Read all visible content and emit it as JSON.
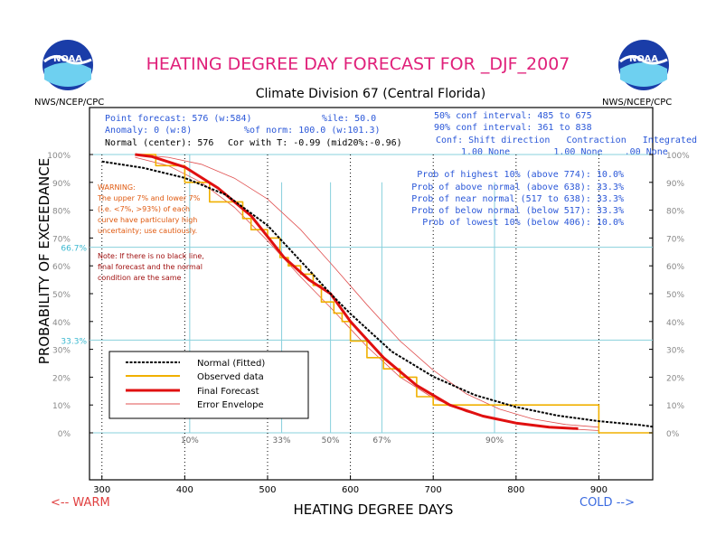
{
  "header": {
    "title": "HEATING DEGREE DAY FORECAST FOR _DJF_2007",
    "subtitle": "Climate Division 67 (Central Florida)",
    "agency_left": "NWS/NCEP/CPC",
    "agency_right": "NWS/NCEP/CPC",
    "logo_text": "NOAA"
  },
  "stats": {
    "point_forecast": "Point forecast: 576 (w:584)",
    "anomaly": "Anomaly: 0 (w:8)",
    "normal_center": "Normal (center): 576",
    "cor_with_t": "Cor with T: -0.99 (mid20%:-0.96)",
    "percentile": "%ile: 50.0",
    "pct_of_norm": "%of norm: 100.0 (w:101.3)",
    "conf50": "50% conf interval: 485 to 675",
    "conf90": "90% conf interval: 361 to 838",
    "conf_header": "Conf: Shift direction   Contraction   Integrated",
    "conf_values": "1.00 None        1.00 None    .00 None"
  },
  "probs": [
    "Prob of highest 10% (above 774): 10.0%",
    "Prob of above normal (above 638): 33.3%",
    "Prob of near normal (517 to 638): 33.3%",
    "Prob of below normal (below 517): 33.3%",
    "Prob of lowest 10% (below 406): 10.0%"
  ],
  "warning": {
    "title": "WARNING:",
    "lines": [
      "The upper 7% and lower 7%",
      "(i.e. <7%, >93%) of each",
      "curve have particulary high",
      "uncertainty; use cautiously."
    ]
  },
  "note": {
    "lines": [
      "Note: If there is no black line,",
      "final forecast and  the normal",
      "condition are the same"
    ]
  },
  "axes": {
    "xlabel": "HEATING DEGREE DAYS",
    "ylabel": "PROBABILITY OF EXCEEDANCE",
    "warm": "<-- WARM",
    "cold": "COLD -->"
  },
  "colors": {
    "title": "#e0207a",
    "blue_text": "#2a57d8",
    "normal": "#000000",
    "observed": "#f0b000",
    "forecast": "#e01010",
    "envelope": "#e05050",
    "guide": "#88d0dc",
    "warning": "#e05a10",
    "note": "#a01010",
    "warm": "#e04040",
    "cold": "#3a6ae0"
  },
  "chart_data": {
    "type": "line",
    "xlabel": "HEATING DEGREE DAYS",
    "ylabel": "PROBABILITY OF EXCEEDANCE",
    "xlim": [
      285,
      965
    ],
    "ylim": [
      0,
      100
    ],
    "x_ticks": [
      300,
      400,
      500,
      600,
      700,
      800,
      900
    ],
    "y_ticks": [
      "0%",
      "10%",
      "20%",
      "30%",
      "40%",
      "50%",
      "60%",
      "70%",
      "80%",
      "90%",
      "100%"
    ],
    "ref_lines": [
      {
        "label": "66.7%",
        "y": 66.7
      },
      {
        "label": "33.3%",
        "y": 33.3
      }
    ],
    "percentile_markers": [
      {
        "label": "10%",
        "x": 406
      },
      {
        "label": "33%",
        "x": 517
      },
      {
        "label": "50%",
        "x": 576
      },
      {
        "label": "67%",
        "x": 638
      },
      {
        "label": "90%",
        "x": 774
      }
    ],
    "legend": [
      "Normal (Fitted)",
      "Observed data",
      "Final Forecast",
      "Error Envelope"
    ],
    "series": [
      {
        "name": "Normal (Fitted)",
        "x": [
          300,
          350,
          400,
          450,
          500,
          550,
          576,
          600,
          650,
          700,
          750,
          800,
          850,
          900,
          950,
          965
        ],
        "y": [
          97.5,
          95.2,
          91.6,
          85.5,
          74.5,
          58.5,
          50,
          42.8,
          29.2,
          20.2,
          13.6,
          9.3,
          6.2,
          4.2,
          2.8,
          2.2
        ]
      },
      {
        "name": "Observed data",
        "x": [
          340,
          365,
          365,
          400,
          400,
          430,
          430,
          470,
          470,
          480,
          480,
          500,
          500,
          515,
          515,
          525,
          525,
          540,
          540,
          555,
          555,
          565,
          565,
          580,
          580,
          590,
          590,
          600,
          600,
          620,
          620,
          640,
          640,
          660,
          660,
          680,
          680,
          700,
          700,
          900,
          900,
          965
        ],
        "y": [
          100,
          100,
          96,
          96,
          90,
          90,
          83,
          83,
          77,
          77,
          73,
          73,
          70,
          70,
          63,
          63,
          60,
          60,
          57,
          57,
          53,
          53,
          47,
          47,
          43,
          43,
          40,
          40,
          33,
          33,
          27,
          27,
          23,
          23,
          20,
          20,
          13,
          13,
          10,
          10,
          0,
          0
        ]
      },
      {
        "name": "Final Forecast",
        "x": [
          340,
          360,
          400,
          440,
          480,
          520,
          550,
          576,
          600,
          640,
          680,
          720,
          760,
          800,
          840,
          875
        ],
        "y": [
          100,
          99.3,
          95.5,
          88,
          78,
          63,
          55,
          50,
          40,
          27,
          17,
          10,
          6,
          3.5,
          2,
          1.5
        ]
      },
      {
        "name": "Error Envelope Upper",
        "x": [
          340,
          380,
          420,
          460,
          500,
          540,
          576,
          620,
          660,
          700,
          740,
          780,
          820,
          860,
          900
        ],
        "y": [
          100,
          99,
          96.5,
          91.5,
          84,
          73,
          61,
          46,
          33,
          22.5,
          14,
          8.5,
          5,
          3,
          2
        ]
      },
      {
        "name": "Error Envelope Lower",
        "x": [
          340,
          380,
          420,
          460,
          500,
          540,
          576,
          620,
          660,
          700,
          740,
          780,
          820,
          860,
          900
        ],
        "y": [
          99,
          96,
          90,
          81,
          69,
          56,
          45,
          31,
          20,
          12.5,
          7.5,
          4.5,
          2.5,
          1.5,
          0.8
        ]
      }
    ]
  }
}
